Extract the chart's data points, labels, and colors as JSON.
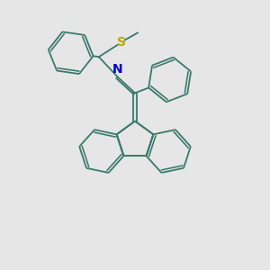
{
  "bg_color": "#e6e6e6",
  "bond_color": "#3a7a6a",
  "N_color": "#0000cc",
  "S_color": "#bbaa00",
  "line_width": 1.3,
  "font_size": 10,
  "r_hex": 0.75
}
